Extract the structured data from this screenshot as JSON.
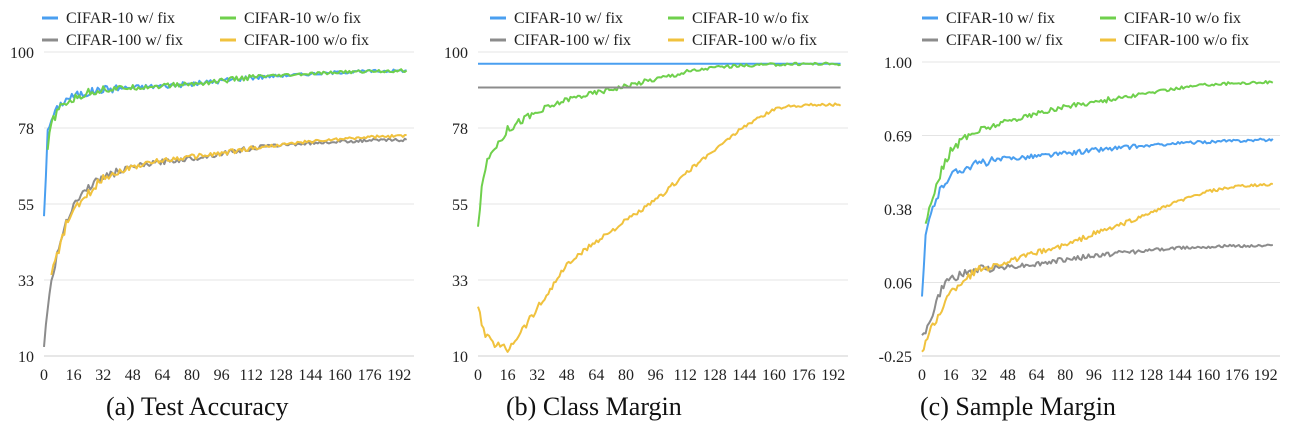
{
  "chart_data": [
    {
      "type": "line",
      "title": "(a)  Test Accuracy",
      "ylim": [
        10,
        100
      ],
      "yticks": [
        "10",
        "33",
        "55",
        "78",
        "100"
      ],
      "xlim": [
        0,
        200
      ],
      "xticks": [
        "0",
        "16",
        "32",
        "48",
        "64",
        "80",
        "96",
        "112",
        "128",
        "144",
        "160",
        "176",
        "192"
      ],
      "grid": true,
      "legend": "top",
      "series": [
        {
          "name": "CIFAR-10 w/ fix",
          "color": "#4a9ff0",
          "x": [
            0,
            2,
            4,
            8,
            12,
            16,
            24,
            32,
            48,
            64,
            80,
            96,
            112,
            128,
            144,
            160,
            176,
            196
          ],
          "y": [
            52,
            76,
            80,
            84,
            86,
            87,
            88,
            89,
            89.5,
            90,
            90.5,
            91.5,
            92.5,
            93,
            93.5,
            94,
            94.3,
            94.5
          ]
        },
        {
          "name": "CIFAR-10 w/o fix",
          "color": "#6fd04c",
          "x": [
            2,
            4,
            8,
            12,
            16,
            24,
            32,
            48,
            64,
            80,
            96,
            112,
            128,
            144,
            160,
            176,
            196
          ],
          "y": [
            71,
            79,
            83,
            85,
            86,
            88,
            89,
            89.5,
            90,
            90.5,
            91.5,
            92.5,
            93,
            93.5,
            94,
            94.3,
            94.5
          ]
        },
        {
          "name": "CIFAR-100 w/ fix",
          "color": "#8c8c8c",
          "x": [
            0,
            2,
            4,
            8,
            12,
            16,
            24,
            32,
            48,
            64,
            80,
            96,
            112,
            128,
            144,
            160,
            176,
            196
          ],
          "y": [
            12,
            25,
            32,
            42,
            50,
            55,
            60,
            63,
            66,
            67.5,
            68.5,
            70,
            71.5,
            72.5,
            73,
            73.5,
            73.8,
            74
          ]
        },
        {
          "name": "CIFAR-100 w/o fix",
          "color": "#f0c23e",
          "x": [
            4,
            8,
            12,
            16,
            24,
            32,
            48,
            64,
            80,
            96,
            112,
            128,
            144,
            160,
            176,
            196
          ],
          "y": [
            35,
            41,
            49,
            53,
            58,
            63,
            66,
            68,
            69,
            70,
            71.5,
            72.5,
            73.5,
            74.2,
            74.8,
            75.2
          ]
        }
      ]
    },
    {
      "type": "line",
      "title": "(b)  Class Margin",
      "ylim": [
        10,
        100
      ],
      "yticks": [
        "10",
        "33",
        "55",
        "78",
        "100"
      ],
      "xlim": [
        0,
        200
      ],
      "xticks": [
        "0",
        "16",
        "32",
        "48",
        "64",
        "80",
        "96",
        "112",
        "128",
        "144",
        "160",
        "176",
        "192"
      ],
      "grid": true,
      "legend": "top",
      "series": [
        {
          "name": "CIFAR-10 w/ fix",
          "color": "#4a9ff0",
          "x": [
            0,
            196
          ],
          "y": [
            96.5,
            96.5
          ]
        },
        {
          "name": "CIFAR-10 w/o fix",
          "color": "#6fd04c",
          "x": [
            0,
            2,
            4,
            8,
            12,
            16,
            24,
            32,
            48,
            64,
            80,
            96,
            112,
            128,
            144,
            160,
            176,
            196
          ],
          "y": [
            49,
            59,
            66,
            71,
            74,
            77,
            80,
            82,
            86,
            88,
            90,
            92,
            94,
            95.5,
            96,
            96.3,
            96.5,
            96.5
          ]
        },
        {
          "name": "CIFAR-100 w/ fix",
          "color": "#8c8c8c",
          "x": [
            0,
            196
          ],
          "y": [
            89.5,
            89.5
          ]
        },
        {
          "name": "CIFAR-100 w/o fix",
          "color": "#f0c23e",
          "x": [
            0,
            4,
            8,
            12,
            16,
            24,
            32,
            48,
            64,
            80,
            96,
            112,
            128,
            144,
            160,
            168,
            176,
            196
          ],
          "y": [
            24,
            16,
            14,
            13,
            12,
            18,
            24,
            37,
            44,
            50,
            56,
            64,
            71,
            78,
            83,
            84,
            84.3,
            84.5
          ]
        }
      ]
    },
    {
      "type": "line",
      "title": "(c)  Sample Margin",
      "ylim": [
        -0.25,
        1.0
      ],
      "yticks": [
        "-0.25",
        "0.06",
        "0.38",
        "0.69",
        "1.00"
      ],
      "xlim": [
        0,
        200
      ],
      "xticks": [
        "0",
        "16",
        "32",
        "48",
        "64",
        "80",
        "96",
        "112",
        "128",
        "144",
        "160",
        "176",
        "192"
      ],
      "grid": true,
      "legend": "top",
      "series": [
        {
          "name": "CIFAR-10 w/ fix",
          "color": "#4a9ff0",
          "x": [
            0,
            2,
            4,
            8,
            12,
            16,
            24,
            32,
            48,
            64,
            80,
            96,
            112,
            128,
            144,
            160,
            176,
            196
          ],
          "y": [
            0.0,
            0.25,
            0.33,
            0.42,
            0.48,
            0.52,
            0.55,
            0.57,
            0.59,
            0.6,
            0.61,
            0.625,
            0.635,
            0.645,
            0.655,
            0.66,
            0.665,
            0.67
          ]
        },
        {
          "name": "CIFAR-10 w/o fix",
          "color": "#6fd04c",
          "x": [
            2,
            4,
            8,
            12,
            16,
            24,
            32,
            48,
            64,
            80,
            96,
            112,
            128,
            144,
            160,
            176,
            196
          ],
          "y": [
            0.3,
            0.38,
            0.48,
            0.56,
            0.62,
            0.68,
            0.71,
            0.75,
            0.78,
            0.81,
            0.83,
            0.85,
            0.87,
            0.89,
            0.905,
            0.91,
            0.915
          ]
        },
        {
          "name": "CIFAR-100 w/ fix",
          "color": "#8c8c8c",
          "x": [
            0,
            2,
            4,
            8,
            12,
            16,
            24,
            32,
            48,
            64,
            80,
            96,
            112,
            128,
            144,
            160,
            176,
            196
          ],
          "y": [
            -0.15,
            -0.14,
            -0.12,
            -0.02,
            0.05,
            0.08,
            0.1,
            0.12,
            0.13,
            0.14,
            0.16,
            0.175,
            0.19,
            0.2,
            0.21,
            0.215,
            0.218,
            0.22
          ]
        },
        {
          "name": "CIFAR-100 w/o fix",
          "color": "#f0c23e",
          "x": [
            0,
            4,
            8,
            12,
            16,
            24,
            32,
            48,
            64,
            80,
            96,
            112,
            128,
            144,
            160,
            176,
            196
          ],
          "y": [
            -0.23,
            -0.15,
            -0.1,
            -0.03,
            0.02,
            0.08,
            0.12,
            0.15,
            0.19,
            0.22,
            0.27,
            0.31,
            0.36,
            0.41,
            0.45,
            0.47,
            0.48
          ]
        }
      ]
    }
  ]
}
